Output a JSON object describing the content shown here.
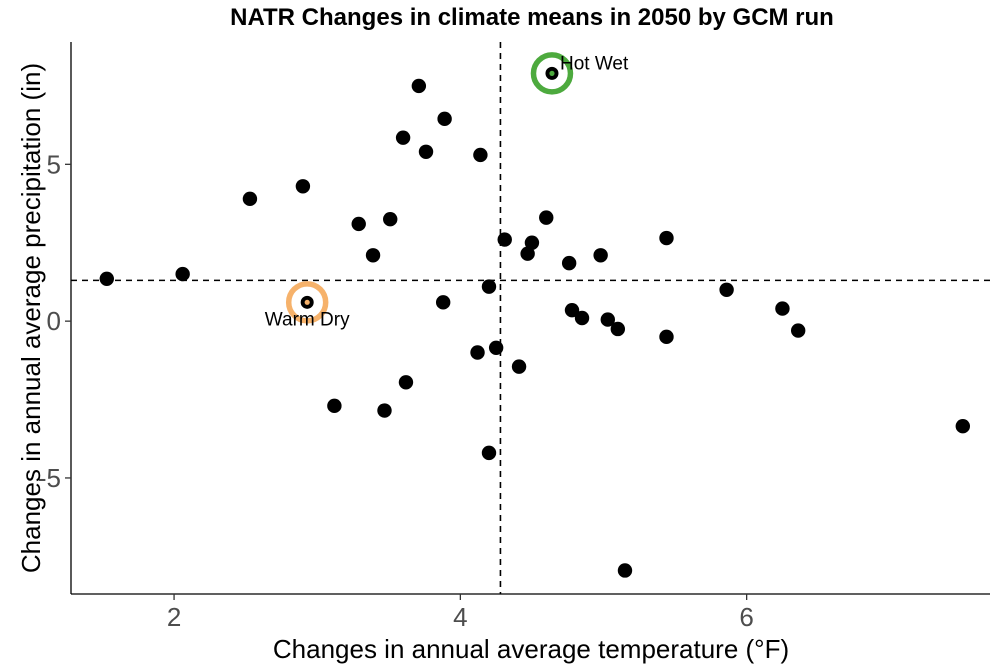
{
  "chart_data": {
    "type": "scatter",
    "title": "NATR Changes in climate means in 2050 by GCM run",
    "xlabel": "Changes in annual average temperature (°F)",
    "ylabel": "Changes in annual average precipitation (in)",
    "xlim": [
      1.28,
      7.7
    ],
    "ylim": [
      -8.7,
      8.9
    ],
    "xticks": [
      2,
      4,
      6
    ],
    "yticks": [
      -5,
      0,
      5
    ],
    "grid": false,
    "reference_lines": {
      "x": 4.28,
      "y": 1.3
    },
    "point_color": "#000000",
    "points": [
      {
        "x": 1.53,
        "y": 1.35
      },
      {
        "x": 2.06,
        "y": 1.5
      },
      {
        "x": 2.53,
        "y": 3.9
      },
      {
        "x": 2.9,
        "y": 4.3
      },
      {
        "x": 3.12,
        "y": -2.7
      },
      {
        "x": 3.29,
        "y": 3.1
      },
      {
        "x": 3.39,
        "y": 2.1
      },
      {
        "x": 3.47,
        "y": -2.85
      },
      {
        "x": 3.51,
        "y": 3.25
      },
      {
        "x": 3.6,
        "y": 5.85
      },
      {
        "x": 3.62,
        "y": -1.95
      },
      {
        "x": 3.71,
        "y": 7.5
      },
      {
        "x": 3.76,
        "y": 5.4
      },
      {
        "x": 3.88,
        "y": 0.6
      },
      {
        "x": 3.89,
        "y": 6.45
      },
      {
        "x": 4.12,
        "y": -1.0
      },
      {
        "x": 4.14,
        "y": 5.3
      },
      {
        "x": 4.2,
        "y": 1.1
      },
      {
        "x": 4.2,
        "y": -4.2
      },
      {
        "x": 4.25,
        "y": -0.85
      },
      {
        "x": 4.31,
        "y": 2.6
      },
      {
        "x": 4.41,
        "y": -1.45
      },
      {
        "x": 4.47,
        "y": 2.15
      },
      {
        "x": 4.5,
        "y": 2.5
      },
      {
        "x": 4.6,
        "y": 3.3
      },
      {
        "x": 4.76,
        "y": 1.85
      },
      {
        "x": 4.78,
        "y": 0.35
      },
      {
        "x": 4.85,
        "y": 0.1
      },
      {
        "x": 4.98,
        "y": 2.1
      },
      {
        "x": 5.03,
        "y": 0.05
      },
      {
        "x": 5.1,
        "y": -0.25
      },
      {
        "x": 5.15,
        "y": -7.95
      },
      {
        "x": 5.44,
        "y": -0.5
      },
      {
        "x": 5.44,
        "y": 2.65
      },
      {
        "x": 5.86,
        "y": 1.0
      },
      {
        "x": 6.25,
        "y": 0.4
      },
      {
        "x": 6.36,
        "y": -0.3
      },
      {
        "x": 7.51,
        "y": -3.35
      }
    ],
    "highlights": [
      {
        "label": "Hot Wet",
        "x": 4.64,
        "y": 7.9,
        "ring_color": "#4daa3e",
        "center_color": "#4daa3e",
        "label_position": "right-above"
      },
      {
        "label": "Warm Dry",
        "x": 2.93,
        "y": 0.6,
        "ring_color": "#f6b26b",
        "center_color": "#f6b26b",
        "label_position": "below"
      }
    ]
  }
}
